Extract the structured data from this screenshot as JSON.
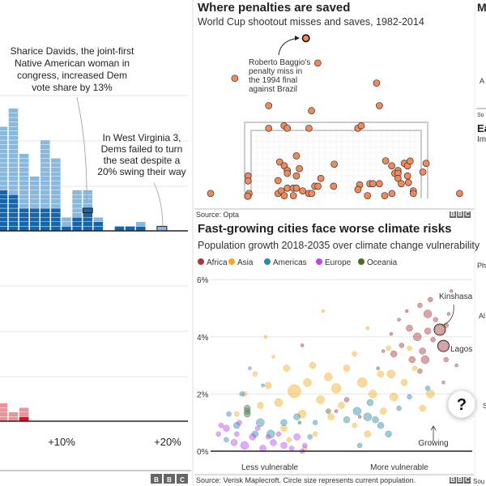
{
  "colors": {
    "dem_light": "#8ab8dc",
    "dem_dark": "#1565a8",
    "rep_light": "#e8949a",
    "rep_dark": "#d31120",
    "penalty_dot": "#f08a5a",
    "africa": "#a8373c",
    "asia": "#f7a823",
    "americas": "#2f8aa6",
    "europe": "#b748f2",
    "oceania": "#4f6b24"
  },
  "logo": "BBC",
  "left_panel": {
    "annotation_davids": [
      "Sharice Davids, the joint-first",
      "Native American woman in",
      "congress, increased Dem",
      "vote share by 13%"
    ],
    "annotation_wv": [
      "In West Virginia 3,",
      "Dems failed to turn",
      "the seat despite a",
      "20% swing their way"
    ],
    "x_ticks": [
      "+10%",
      "+20%"
    ]
  },
  "chart_data": [
    {
      "type": "bar",
      "x_unit": "swing %",
      "x_ticks": [
        "+10%",
        "+20%"
      ],
      "top_series": {
        "bins": [
          4,
          5,
          6,
          7,
          8,
          9,
          10,
          11,
          12,
          13,
          15,
          16,
          17,
          19
        ],
        "total": [
          23,
          27,
          17,
          12,
          20,
          16,
          3,
          9,
          9,
          3,
          1,
          1,
          2,
          1
        ],
        "dark": [
          9,
          8,
          5,
          5,
          5,
          5,
          1,
          3,
          5,
          2,
          1,
          1,
          1,
          0
        ],
        "highlighted": [
          12,
          19
        ]
      },
      "bottom_series": {
        "bins": [
          4,
          5,
          6
        ],
        "total": [
          4,
          2,
          3
        ],
        "dark": [
          0,
          0,
          1
        ]
      }
    },
    {
      "type": "scatter",
      "title": "Where penalties are saved",
      "subtitle": "World Cup shootout misses and saves, 1982-2014",
      "annotation": [
        "Roberto Baggio's",
        "penalty miss in",
        "the 1994 final",
        "against Brazil"
      ],
      "source": "Source: Opta",
      "highlighted_index": 0,
      "points": [
        [
          -1.3,
          5.75
        ],
        [
          -0.79,
          4.86
        ],
        [
          -4.36,
          4.31
        ],
        [
          1.74,
          4.14
        ],
        [
          -2.9,
          3.33
        ],
        [
          -1.06,
          3.15
        ],
        [
          1.86,
          3.33
        ],
        [
          -2.9,
          2.52
        ],
        [
          -2.24,
          2.61
        ],
        [
          -2.1,
          2.52
        ],
        [
          -1.17,
          2.52
        ],
        [
          0.93,
          2.52
        ],
        [
          1.08,
          2.61
        ],
        [
          -1.71,
          1.53
        ],
        [
          -2.43,
          1.31
        ],
        [
          -2.23,
          1.17
        ],
        [
          -2.1,
          1.0
        ],
        [
          -2.1,
          0.9
        ],
        [
          -1.58,
          1.07
        ],
        [
          -1.71,
          0.81
        ],
        [
          -0.08,
          1.23
        ],
        [
          -3.79,
          0.81
        ],
        [
          -3.79,
          0.63
        ],
        [
          -2.5,
          0.64
        ],
        [
          -0.66,
          0.72
        ],
        [
          -5.4,
          0.18
        ],
        [
          -3.75,
          0.18
        ],
        [
          -3.8,
          0.08
        ],
        [
          -2.5,
          0.18
        ],
        [
          -2.36,
          0.27
        ],
        [
          -2.23,
          0.1
        ],
        [
          -2.1,
          0.37
        ],
        [
          -1.85,
          0.37
        ],
        [
          -1.71,
          0.37
        ],
        [
          -1.84,
          0.1
        ],
        [
          -1.44,
          0.27
        ],
        [
          -1.18,
          0.18
        ],
        [
          -1.05,
          0.18
        ],
        [
          -0.92,
          0.44
        ],
        [
          -0.78,
          0.44
        ],
        [
          -0.11,
          0.44
        ],
        [
          1.01,
          0.49
        ],
        [
          0.94,
          0.32
        ],
        [
          1.35,
          0.1
        ],
        [
          1.45,
          0.53
        ],
        [
          1.58,
          0.53
        ],
        [
          1.86,
          0.53
        ],
        [
          2.09,
          0.1
        ],
        [
          2.4,
          0.18
        ],
        [
          2.13,
          1.35
        ],
        [
          2.39,
          1.17
        ],
        [
          2.66,
          1.0
        ],
        [
          2.52,
          0.9
        ],
        [
          2.66,
          0.9
        ],
        [
          2.66,
          0.72
        ],
        [
          2.8,
          0.53
        ],
        [
          2.93,
          1.26
        ],
        [
          3.07,
          1.17
        ],
        [
          3.18,
          1.34
        ],
        [
          3.07,
          0.81
        ],
        [
          3.11,
          0.57
        ],
        [
          3.32,
          0.27
        ],
        [
          3.32,
          0.18
        ],
        [
          3.73,
          0.95
        ],
        [
          3.87,
          1.26
        ],
        [
          5.31,
          0.18
        ]
      ]
    },
    {
      "type": "scatter",
      "title": "Fast-growing cities face worse climate risks",
      "subtitle": "Population growth 2018-2035 over climate change vulnerability",
      "legend": [
        "Africa",
        "Asia",
        "Americas",
        "Europe",
        "Oceania"
      ],
      "legend_placement": "top-left",
      "y_ticks": [
        "0%",
        "2%",
        "4%",
        "6%"
      ],
      "ylim": [
        0,
        6
      ],
      "x_labels": [
        "Less vulnerable",
        "More vulnerable"
      ],
      "grid": true,
      "labels": {
        "kinshasa": "Kinshasa",
        "lagos": "Lagos",
        "growing": "Growing"
      },
      "source": "Source: Verisk Maplecroft. Circle size represents current population.",
      "series": {
        "Africa": [
          [
            8.76,
            4.25,
            6
          ],
          [
            8.9,
            3.68,
            6
          ],
          [
            7.6,
            4.3,
            4
          ],
          [
            7.9,
            4.0,
            5
          ],
          [
            8.1,
            3.5,
            4
          ],
          [
            8.3,
            4.8,
            5
          ],
          [
            8.0,
            5.1,
            3
          ],
          [
            8.6,
            4.6,
            3
          ],
          [
            9.0,
            4.4,
            3
          ],
          [
            7.3,
            3.7,
            3
          ],
          [
            7.0,
            3.4,
            4
          ],
          [
            7.7,
            3.2,
            4
          ],
          [
            8.2,
            3.2,
            5
          ],
          [
            8.5,
            3.9,
            3
          ],
          [
            9.2,
            5.6,
            2
          ],
          [
            8.4,
            5.3,
            3
          ],
          [
            7.5,
            4.9,
            2
          ],
          [
            9.0,
            3.2,
            3
          ],
          [
            9.4,
            3.0,
            2
          ],
          [
            8.9,
            2.4,
            2
          ],
          [
            8.0,
            2.8,
            3
          ],
          [
            6.6,
            3.5,
            2
          ],
          [
            7.2,
            4.6,
            2
          ],
          [
            8.3,
            4.2,
            4
          ],
          [
            6.9,
            4.1,
            2
          ],
          [
            9.1,
            4.8,
            2
          ],
          [
            3.5,
            3.7,
            2
          ],
          [
            5.2,
            1.8,
            3
          ],
          [
            4.8,
            1.4,
            2
          ],
          [
            5.7,
            1.2,
            2
          ]
        ],
        "Asia": [
          [
            3.2,
            2.1,
            8
          ],
          [
            3.7,
            2.4,
            5
          ],
          [
            5.8,
            2.4,
            6
          ],
          [
            6.2,
            2.0,
            5
          ],
          [
            2.9,
            2.9,
            4
          ],
          [
            3.9,
            3.0,
            4
          ],
          [
            4.2,
            1.8,
            5
          ],
          [
            4.8,
            2.2,
            6
          ],
          [
            2.2,
            2.3,
            4
          ],
          [
            2.6,
            1.7,
            5
          ],
          [
            1.9,
            1.6,
            4
          ],
          [
            1.3,
            2.0,
            3
          ],
          [
            5.2,
            2.9,
            4
          ],
          [
            6.5,
            2.7,
            4
          ],
          [
            7.0,
            1.9,
            5
          ],
          [
            7.4,
            2.4,
            4
          ],
          [
            8.4,
            2.0,
            5
          ],
          [
            8.1,
            1.5,
            4
          ],
          [
            7.8,
            2.9,
            3
          ],
          [
            6.8,
            3.6,
            3
          ],
          [
            2.1,
            4.0,
            2
          ],
          [
            4.5,
            2.6,
            5
          ],
          [
            5.0,
            1.6,
            4
          ],
          [
            3.5,
            1.3,
            5
          ],
          [
            2.8,
            0.8,
            4
          ],
          [
            3.0,
            0.4,
            3
          ],
          [
            4.0,
            0.6,
            3
          ],
          [
            5.5,
            0.9,
            3
          ],
          [
            6.0,
            0.6,
            4
          ],
          [
            1.7,
            2.7,
            3
          ],
          [
            2.4,
            3.3,
            2
          ],
          [
            4.3,
            4.9,
            2
          ],
          [
            6.0,
            4.3,
            2
          ],
          [
            5.5,
            3.4,
            3
          ],
          [
            6.6,
            1.4,
            4
          ],
          [
            3.6,
            0.1,
            3
          ],
          [
            4.6,
            1.2,
            4
          ],
          [
            7.6,
            3.6,
            3
          ],
          [
            1.0,
            1.3,
            3
          ],
          [
            6.9,
            2.7,
            5
          ]
        ],
        "Americas": [
          [
            1.0,
            0.9,
            4
          ],
          [
            1.4,
            1.4,
            4
          ],
          [
            1.9,
            1.0,
            5
          ],
          [
            2.3,
            0.6,
            5
          ],
          [
            1.7,
            0.6,
            4
          ],
          [
            2.8,
            1.0,
            4
          ],
          [
            3.3,
            1.2,
            4
          ],
          [
            0.7,
            1.3,
            3
          ],
          [
            1.2,
            2.0,
            3
          ],
          [
            2.0,
            2.3,
            2
          ],
          [
            0.6,
            0.4,
            3
          ],
          [
            5.6,
            1.4,
            5
          ],
          [
            6.0,
            1.2,
            5
          ],
          [
            6.3,
            1.1,
            4
          ],
          [
            6.5,
            0.9,
            4
          ],
          [
            5.2,
            1.1,
            4
          ],
          [
            6.8,
            0.6,
            4
          ],
          [
            7.2,
            1.5,
            3
          ],
          [
            6.1,
            1.7,
            4
          ],
          [
            4.0,
            1.0,
            3
          ],
          [
            3.8,
            0.5,
            3
          ],
          [
            7.6,
            1.9,
            3
          ],
          [
            8.3,
            2.2,
            3
          ],
          [
            5.7,
            0.2,
            3
          ],
          [
            1.5,
            2.9,
            2
          ]
        ],
        "Europe": [
          [
            0.3,
            0.6,
            3
          ],
          [
            0.6,
            0.8,
            4
          ],
          [
            0.9,
            0.3,
            4
          ],
          [
            1.3,
            0.2,
            5
          ],
          [
            1.6,
            0.5,
            4
          ],
          [
            2.0,
            0.1,
            4
          ],
          [
            2.4,
            0.3,
            4
          ],
          [
            2.8,
            0.2,
            4
          ],
          [
            3.3,
            0.5,
            4
          ],
          [
            3.1,
            0.1,
            3
          ],
          [
            1.1,
            1.0,
            3
          ],
          [
            1.8,
            0.8,
            3
          ],
          [
            3.6,
            0.2,
            3
          ],
          [
            2.6,
            0.6,
            3
          ],
          [
            0.4,
            0.9,
            3
          ],
          [
            1.0,
            0.6,
            3
          ],
          [
            2.2,
            0.5,
            3
          ],
          [
            3.5,
            0.0,
            3
          ]
        ],
        "Oceania": [
          [
            1.4,
            1.5,
            4
          ],
          [
            1.4,
            1.3,
            4
          ],
          [
            4.5,
            1.4,
            3
          ],
          [
            3.4,
            1.0,
            2
          ],
          [
            6.4,
            2.9,
            2
          ]
        ]
      }
    }
  ],
  "help_button": "?",
  "right_fragments": {
    "top": [
      "M",
      "A",
      "So",
      "Ea",
      "Im"
    ],
    "bottom": [
      "Ph",
      "Al",
      "S",
      "Sou"
    ]
  }
}
